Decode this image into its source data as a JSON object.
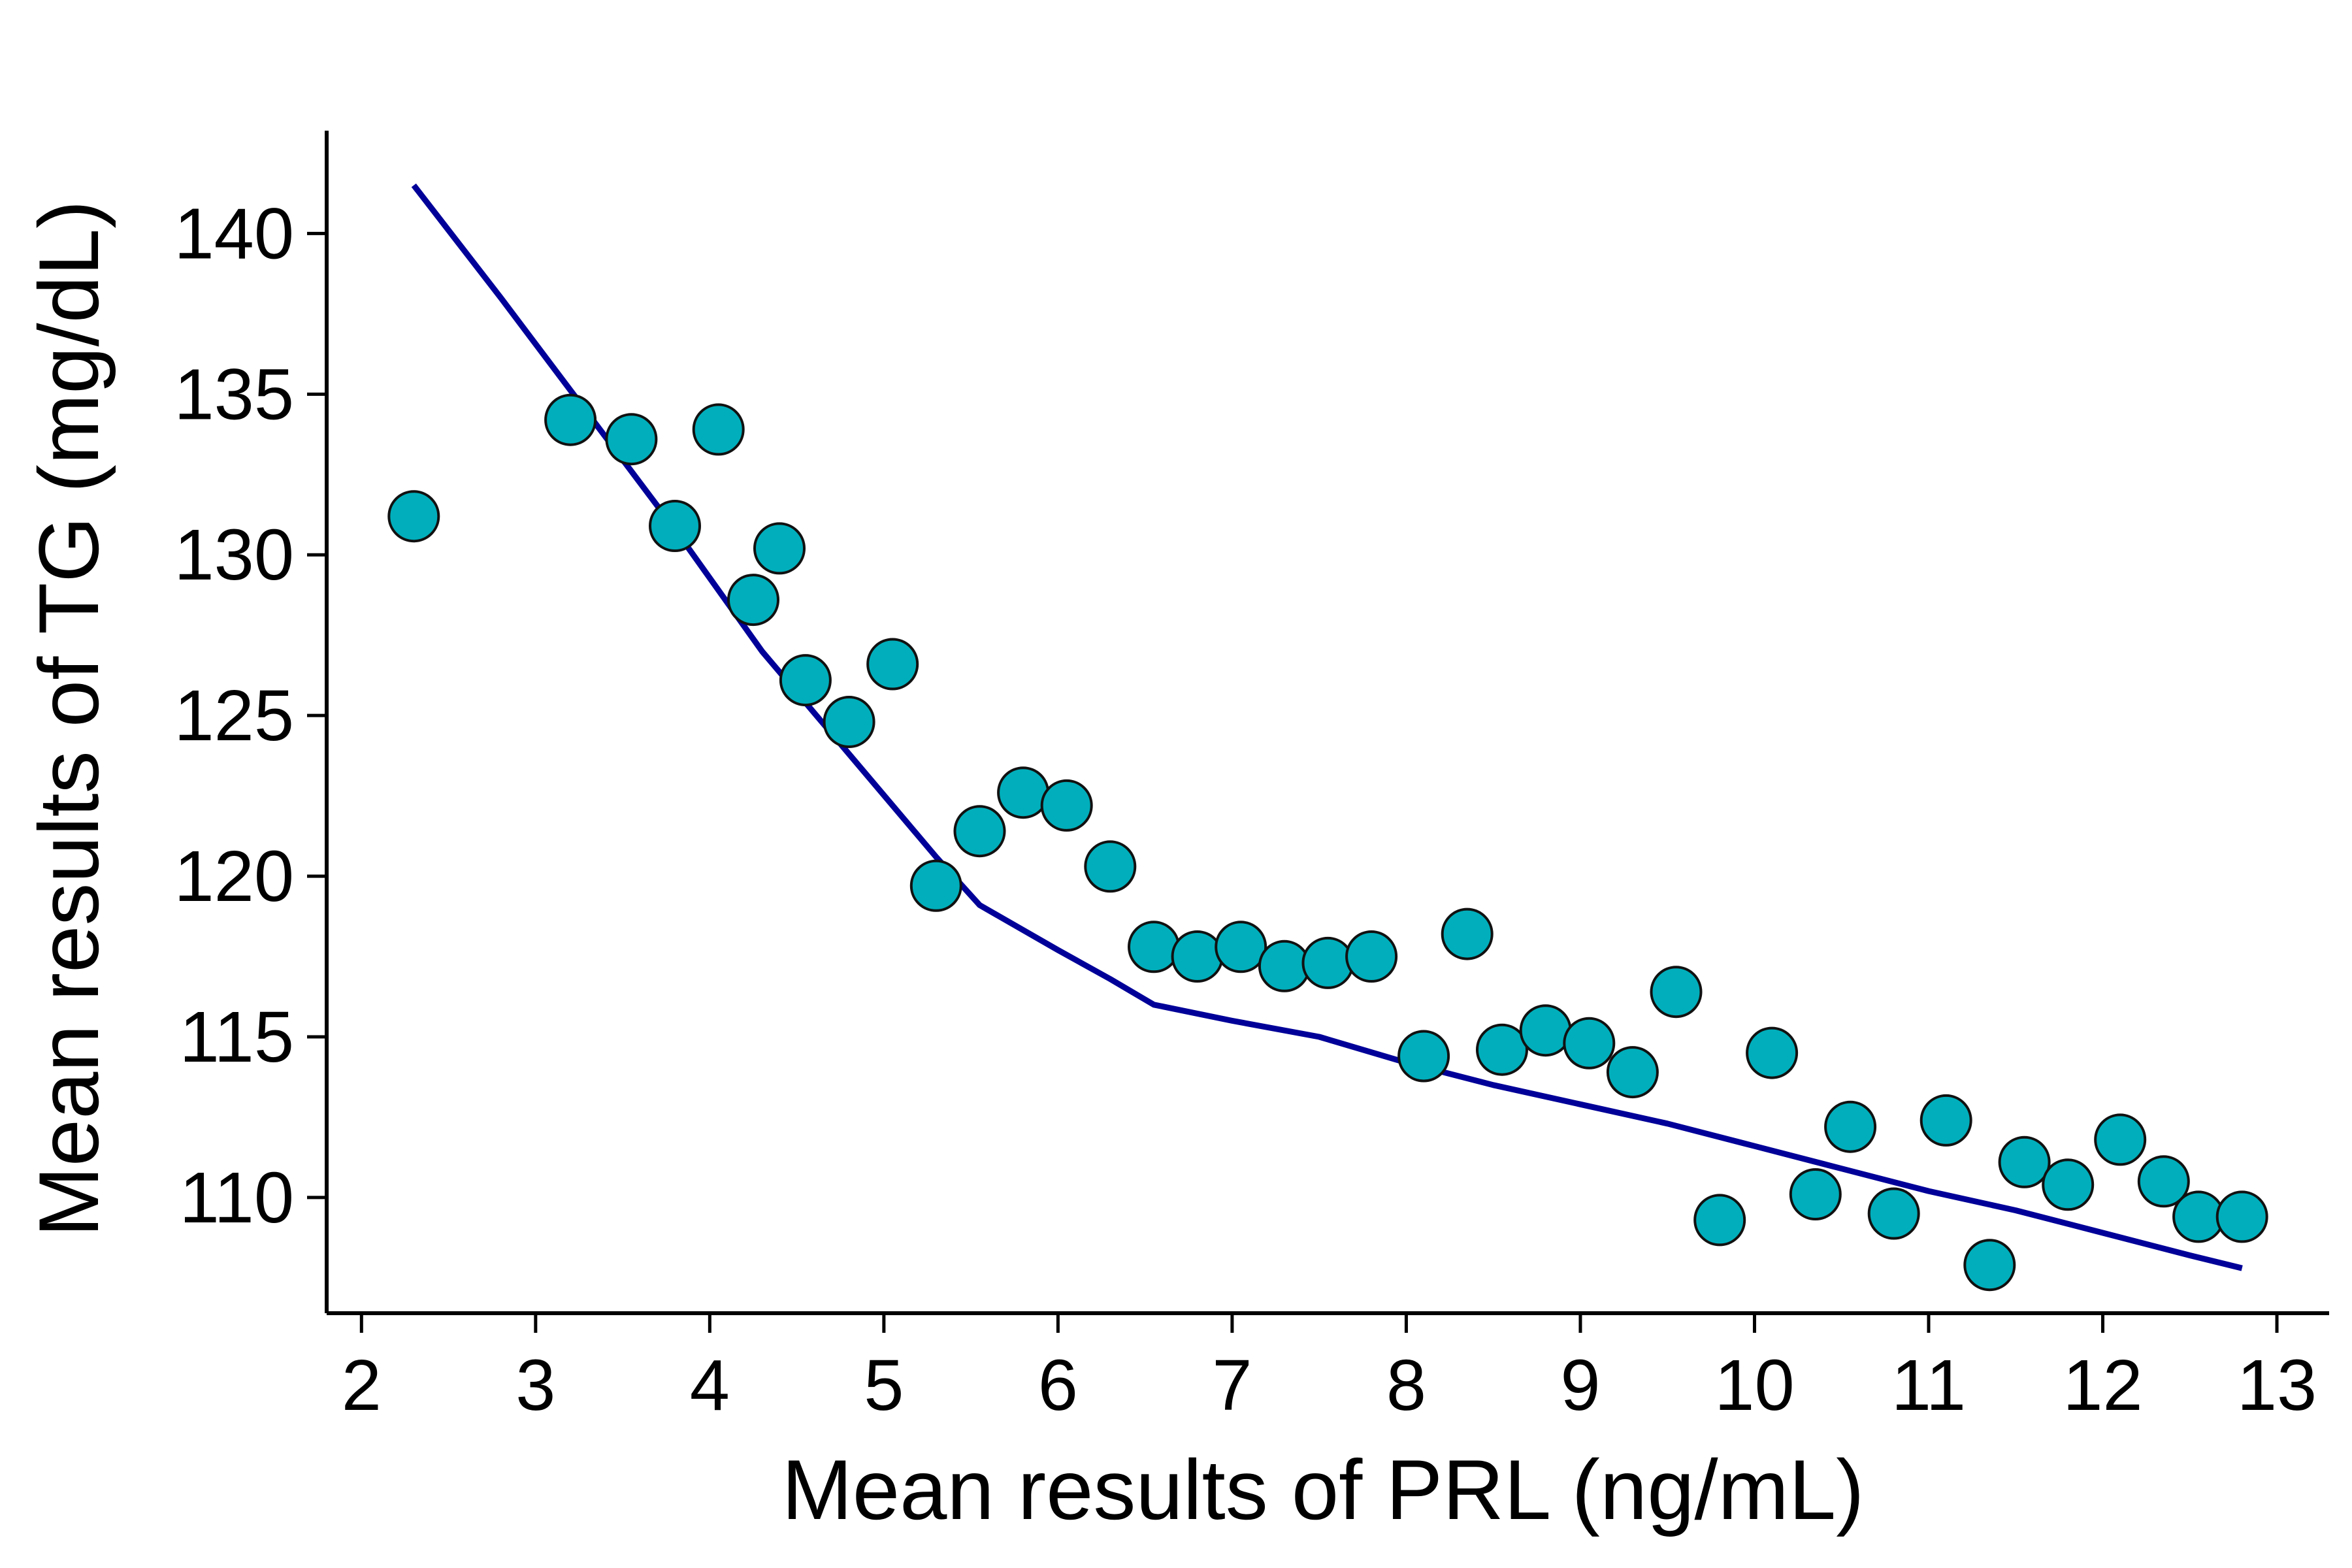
{
  "chart_data": {
    "type": "scatter",
    "title": "",
    "xlabel": "Mean results of PRL (ng/mL)",
    "ylabel": "Mean results of TG (mg/dL)",
    "xlim": [
      1.8,
      13.3
    ],
    "ylim": [
      106.4,
      143.2
    ],
    "xticks": [
      2,
      3,
      4,
      5,
      6,
      7,
      8,
      9,
      10,
      11,
      12,
      13
    ],
    "yticks": [
      110,
      115,
      120,
      125,
      130,
      135,
      140
    ],
    "grid": false,
    "legend": "none",
    "colors": {
      "points_fill": "#00AFBB",
      "points_stroke": "#111111",
      "line": "#000099",
      "axis": "#000000"
    },
    "series": [
      {
        "name": "points",
        "kind": "scatter",
        "x": [
          2.3,
          3.2,
          3.55,
          3.8,
          4.05,
          4.25,
          4.4,
          4.55,
          4.8,
          5.05,
          5.3,
          5.55,
          5.8,
          6.05,
          6.3,
          6.55,
          6.8,
          7.05,
          7.3,
          7.55,
          7.8,
          8.1,
          8.35,
          8.55,
          8.8,
          9.05,
          9.3,
          9.55,
          9.8,
          10.1,
          10.35,
          10.55,
          10.8,
          11.1,
          11.35,
          11.55,
          11.8,
          12.1,
          12.35,
          12.55,
          12.8
        ],
        "y": [
          131.2,
          134.2,
          133.6,
          130.9,
          133.9,
          128.6,
          130.2,
          126.1,
          124.8,
          126.6,
          119.7,
          121.4,
          122.6,
          122.2,
          120.3,
          117.8,
          117.5,
          117.8,
          117.2,
          117.3,
          117.5,
          114.4,
          118.2,
          114.6,
          115.2,
          114.8,
          113.9,
          116.4,
          109.3,
          114.5,
          110.1,
          112.2,
          109.5,
          112.4,
          107.9,
          111.1,
          110.4,
          111.8,
          110.5,
          109.4,
          109.4
        ]
      },
      {
        "name": "fit",
        "kind": "line",
        "x": [
          2.3,
          2.8,
          3.3,
          3.8,
          4.3,
          4.8,
          5.3,
          5.55,
          6.0,
          6.3,
          6.55,
          7.0,
          7.5,
          8.0,
          8.5,
          9.0,
          9.5,
          10.0,
          10.5,
          11.0,
          11.5,
          12.0,
          12.5,
          12.8
        ],
        "y": [
          141.5,
          138.0,
          134.4,
          130.8,
          127.0,
          123.8,
          120.6,
          119.1,
          117.7,
          116.8,
          116.0,
          115.5,
          115.0,
          114.2,
          113.5,
          112.9,
          112.3,
          111.6,
          110.9,
          110.2,
          109.6,
          108.9,
          108.2,
          107.8
        ]
      }
    ]
  }
}
